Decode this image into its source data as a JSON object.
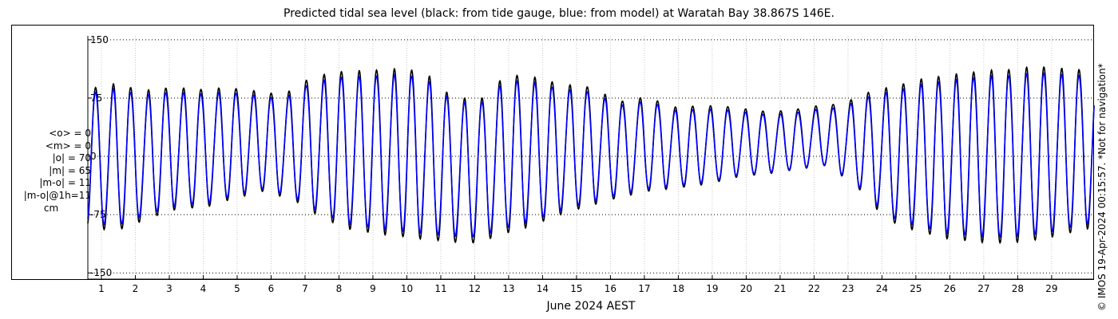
{
  "chart_data": {
    "type": "line",
    "title": "Predicted tidal sea level (black: from tide gauge, blue: from model) at Waratah Bay 38.867S 146E.",
    "xlabel": "June 2024 AEST",
    "ylabel": "",
    "xlim": [
      0.6,
      30.25
    ],
    "ylim": [
      -158,
      155
    ],
    "yticks": [
      150,
      75,
      0,
      -75,
      -150
    ],
    "xtick_labels": [
      "1",
      "2",
      "3",
      "4",
      "5",
      "6",
      "7",
      "8",
      "9",
      "10",
      "11",
      "12",
      "13",
      "14",
      "15",
      "16",
      "17",
      "18",
      "19",
      "20",
      "21",
      "22",
      "23",
      "24",
      "25",
      "26",
      "27",
      "28",
      "29"
    ],
    "grid": true,
    "day_maxima": [
      95,
      102,
      92,
      96,
      93,
      95,
      90,
      85,
      110,
      118,
      120,
      122,
      120,
      86,
      80,
      115,
      110,
      100,
      96,
      76,
      82,
      68,
      70,
      68,
      62,
      62,
      68,
      72,
      90,
      100,
      110,
      115,
      120,
      122,
      126,
      122,
      120
    ],
    "day_minima": [
      -100,
      -104,
      -88,
      -75,
      -72,
      -60,
      -50,
      -64,
      -90,
      -105,
      -110,
      -115,
      -118,
      -120,
      -110,
      -98,
      -82,
      -70,
      -58,
      -50,
      -45,
      -40,
      -30,
      -26,
      -20,
      -15,
      -45,
      -90,
      -105,
      -115,
      -120,
      -122,
      -118,
      -110,
      -100
    ],
    "series": [
      {
        "name": "tide gauge",
        "color": "#000000"
      },
      {
        "name": "model",
        "color": "#0000ff"
      }
    ]
  },
  "stats": {
    "mean_obs": "<o> = 0",
    "mean_model": "<m> = 0",
    "abs_obs": "|o| = 70",
    "abs_model": "|m| = 65",
    "abs_diff": "|m-o| = 11",
    "abs_diff_1h": "|m-o|@1h=11",
    "unit": "cm"
  },
  "credit": "© IMOS 19-Apr-2024 00:15:57. *Not for navigation*"
}
